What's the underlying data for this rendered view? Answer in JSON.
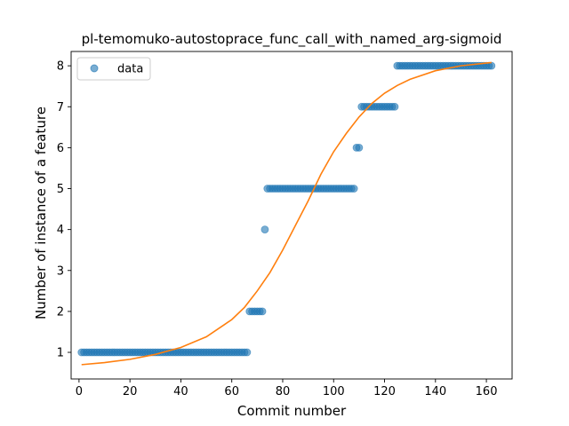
{
  "chart_data": {
    "type": "scatter",
    "title": "pl-temomuko-autostoprace_func_call_with_named_arg-sigmoid",
    "xlabel": "Commit number",
    "ylabel": "Number of instance of a feature",
    "xlim": [
      -3.1,
      170.1
    ],
    "ylim": [
      0.35,
      8.35
    ],
    "xticks": [
      0,
      20,
      40,
      60,
      80,
      100,
      120,
      140,
      160
    ],
    "yticks": [
      1,
      2,
      3,
      4,
      5,
      6,
      7,
      8
    ],
    "grid": false,
    "legend": {
      "position": "top-left",
      "entries": [
        "data"
      ]
    },
    "colors": {
      "data": "#1f77b4",
      "fit": "#ff7f0e"
    },
    "series": [
      {
        "name": "data",
        "kind": "scatter",
        "segments": [
          {
            "x_from": 1,
            "x_to": 66,
            "y": 1
          },
          {
            "x_from": 67,
            "x_to": 72,
            "y": 2
          },
          {
            "x_from": 73,
            "x_to": 73,
            "y": 4
          },
          {
            "x_from": 74,
            "x_to": 108,
            "y": 5
          },
          {
            "x_from": 109,
            "x_to": 110,
            "y": 6
          },
          {
            "x_from": 111,
            "x_to": 124,
            "y": 7
          },
          {
            "x_from": 125,
            "x_to": 162,
            "y": 8
          }
        ]
      },
      {
        "kind": "line",
        "x": [
          1,
          10,
          20,
          30,
          40,
          50,
          60,
          65,
          70,
          75,
          80,
          85,
          90,
          95,
          100,
          105,
          110,
          115,
          120,
          125,
          130,
          140,
          150,
          162
        ],
        "y": [
          0.7,
          0.75,
          0.83,
          0.95,
          1.12,
          1.38,
          1.8,
          2.1,
          2.5,
          2.95,
          3.5,
          4.1,
          4.7,
          5.35,
          5.9,
          6.35,
          6.75,
          7.08,
          7.33,
          7.52,
          7.67,
          7.88,
          8.0,
          8.08
        ]
      }
    ]
  }
}
